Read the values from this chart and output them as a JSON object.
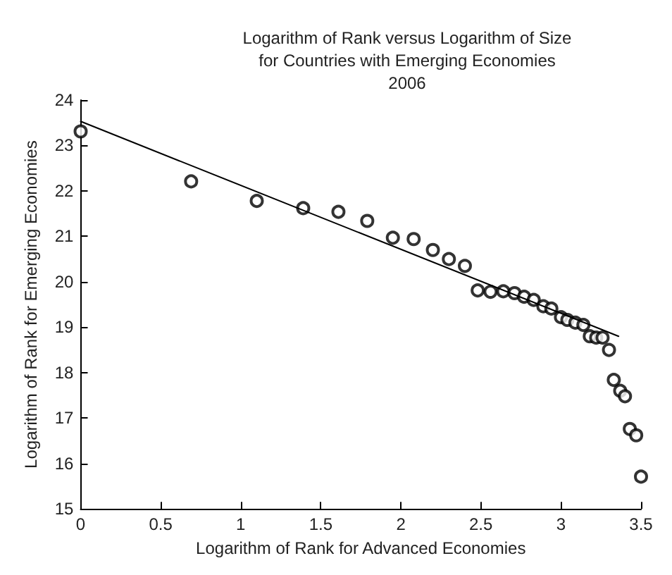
{
  "chart_data": {
    "type": "scatter",
    "title": "Logarithm of Rank versus Logarithm of Size\nfor Countries with Emerging Economies\n2006",
    "xlabel": "Logarithm of Rank for Advanced Economies",
    "ylabel": "Logarithm of Rank for Emerging Economies",
    "xlim": [
      0,
      3.5
    ],
    "xticks": [
      0,
      0.5,
      1,
      1.5,
      2,
      2.5,
      3,
      3.5
    ],
    "ylim": [
      15,
      24
    ],
    "yticks": [
      15,
      16,
      17,
      18,
      19,
      20,
      21,
      22,
      23,
      24
    ],
    "grid": false,
    "series": [
      {
        "color": "#000000",
        "marker": "circle",
        "x": [
          0,
          0.69,
          1.1,
          1.39,
          1.61,
          1.79,
          1.95,
          2.08,
          2.2,
          2.3,
          2.4,
          2.48,
          2.56,
          2.64,
          2.71,
          2.77,
          2.83,
          2.89,
          2.94,
          3.0,
          3.04,
          3.09,
          3.14,
          3.18,
          3.22,
          3.26,
          3.3,
          3.33,
          3.37,
          3.4,
          3.43,
          3.47,
          3.5
        ],
        "values": [
          23.31,
          22.21,
          21.78,
          21.62,
          21.54,
          21.34,
          20.97,
          20.94,
          20.7,
          20.5,
          20.35,
          19.81,
          19.78,
          19.79,
          19.75,
          19.67,
          19.6,
          19.46,
          19.41,
          19.22,
          19.16,
          19.1,
          19.05,
          18.8,
          18.77,
          18.77,
          18.5,
          17.84,
          17.6,
          17.48,
          16.76,
          16.62,
          15.71
        ]
      },
      {
        "type": "line",
        "color": "#000000",
        "marker": "none",
        "line_style": "solid",
        "x": [
          0,
          3.36
        ],
        "values": [
          23.53,
          18.8
        ]
      }
    ]
  }
}
